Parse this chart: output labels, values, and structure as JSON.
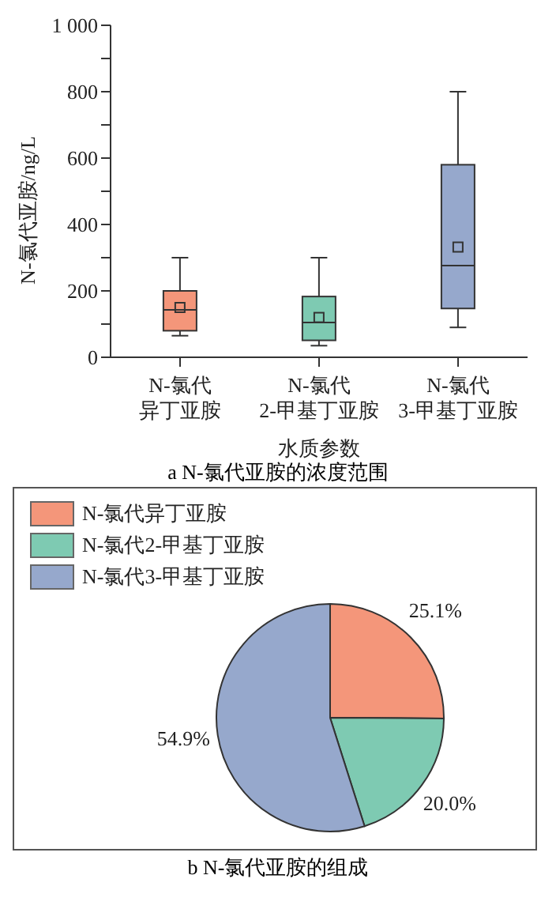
{
  "chart_data": [
    {
      "type": "box",
      "title": "a N-氯代亚胺的浓度范围",
      "xlabel": "水质参数",
      "ylabel": "N-氯代亚胺/ng/L",
      "categories": [
        "N-氯代异丁亚胺",
        "N-氯代2-甲基丁亚胺",
        "N-氯代3-甲基丁亚胺"
      ],
      "colors": [
        "#f4967a",
        "#7ecab2",
        "#96a8cc"
      ],
      "boxes": [
        {
          "low": 65,
          "q1": 80,
          "median": 143,
          "q3": 200,
          "high": 300,
          "mean": 150
        },
        {
          "low": 35,
          "q1": 51,
          "median": 105,
          "q3": 183,
          "high": 300,
          "mean": 120
        },
        {
          "low": 90,
          "q1": 147,
          "median": 276,
          "q3": 580,
          "high": 800,
          "mean": 332
        }
      ],
      "ylim": [
        0,
        1000
      ],
      "yticks": [
        0,
        {
          "value": 100,
          "label": null
        },
        200,
        {
          "value": 300,
          "label": null
        },
        400,
        {
          "value": 500,
          "label": null
        },
        600,
        {
          "value": 700,
          "label": null
        },
        800,
        {
          "value": 900,
          "label": null
        },
        {
          "value": 1000,
          "label": "1 000"
        }
      ],
      "tick_labels": true
    },
    {
      "type": "pie",
      "title": "b N-氯代亚胺的组成",
      "categories": [
        "N-氯代异丁亚胺",
        "N-氯代2-甲基丁亚胺",
        "N-氯代3-甲基丁亚胺"
      ],
      "values": [
        25.1,
        20.0,
        54.9
      ],
      "colors": [
        "#f4967a",
        "#7ecab2",
        "#96a8cc"
      ],
      "value_labels": [
        "25.1%",
        "20.0%",
        "54.9%"
      ],
      "legend": "top left"
    }
  ]
}
